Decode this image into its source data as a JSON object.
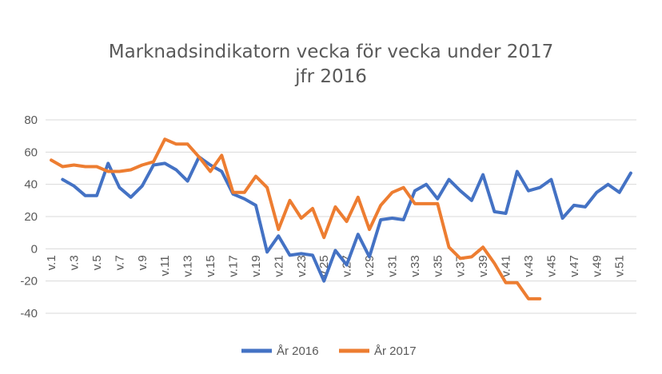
{
  "chart_data": {
    "type": "line",
    "title": [
      "Marknadsindikatorn vecka för vecka under 2017",
      "jfr 2016"
    ],
    "xlabel": "",
    "ylabel": "",
    "ylim": [
      -40,
      80
    ],
    "yticks": [
      -40,
      -20,
      0,
      20,
      40,
      60,
      80
    ],
    "grid": true,
    "legend": "bottom",
    "categories": [
      "v.1",
      "v.2",
      "v.3",
      "v.4",
      "v.5",
      "v.6",
      "v.7",
      "v.8",
      "v.9",
      "v.10",
      "v.11",
      "v.12",
      "v.13",
      "v.14",
      "v.15",
      "v.16",
      "v.17",
      "v.18",
      "v.19",
      "v.20",
      "v.21",
      "v.22",
      "v.23",
      "v.24",
      "v.25",
      "v.26",
      "v.27",
      "v.28",
      "v.29",
      "v.30",
      "v.31",
      "v.32",
      "v.33",
      "v.34",
      "v.35",
      "v.36",
      "v.37",
      "v.38",
      "v.39",
      "v.40",
      "v.41",
      "v.42",
      "v.43",
      "v.44",
      "v.45",
      "v.46",
      "v.47",
      "v.48",
      "v.49",
      "v.50",
      "v.51",
      "v.52"
    ],
    "tick_labels": [
      "v.1",
      "v.3",
      "v.5",
      "v.7",
      "v.9",
      "v.11",
      "v.13",
      "v.15",
      "v.17",
      "v.19",
      "v.21",
      "v.23",
      "v.25",
      "v.27",
      "v.29",
      "v.31",
      "v.33",
      "v.35",
      "v.37",
      "v.39",
      "v.41",
      "v.43",
      "v.45",
      "v.47",
      "v.49",
      "v.51"
    ],
    "series": [
      {
        "name": "År 2016",
        "color": "#4472C4",
        "values": [
          null,
          43,
          39,
          33,
          33,
          53,
          38,
          32,
          39,
          52,
          53,
          49,
          42,
          57,
          52,
          48,
          34,
          31,
          27,
          -2,
          8,
          -4,
          -3,
          -4,
          -20,
          -1,
          -10,
          9,
          -5,
          18,
          19,
          18,
          36,
          40,
          31,
          43,
          36,
          30,
          46,
          23,
          22,
          48,
          36,
          38,
          43,
          19,
          27,
          26,
          35,
          40,
          35,
          47
        ]
      },
      {
        "name": "År 2017",
        "color": "#ED7D31",
        "values": [
          55,
          51,
          52,
          51,
          51,
          48,
          48,
          49,
          52,
          54,
          68,
          65,
          65,
          57,
          48,
          58,
          35,
          35,
          45,
          38,
          12,
          30,
          19,
          25,
          7,
          26,
          17,
          32,
          12,
          27,
          35,
          38,
          28,
          28,
          28,
          1,
          -6,
          -5,
          1,
          -9,
          -21,
          -21,
          -31,
          -31,
          null,
          null,
          null,
          null,
          null,
          null,
          null,
          null
        ]
      }
    ]
  }
}
